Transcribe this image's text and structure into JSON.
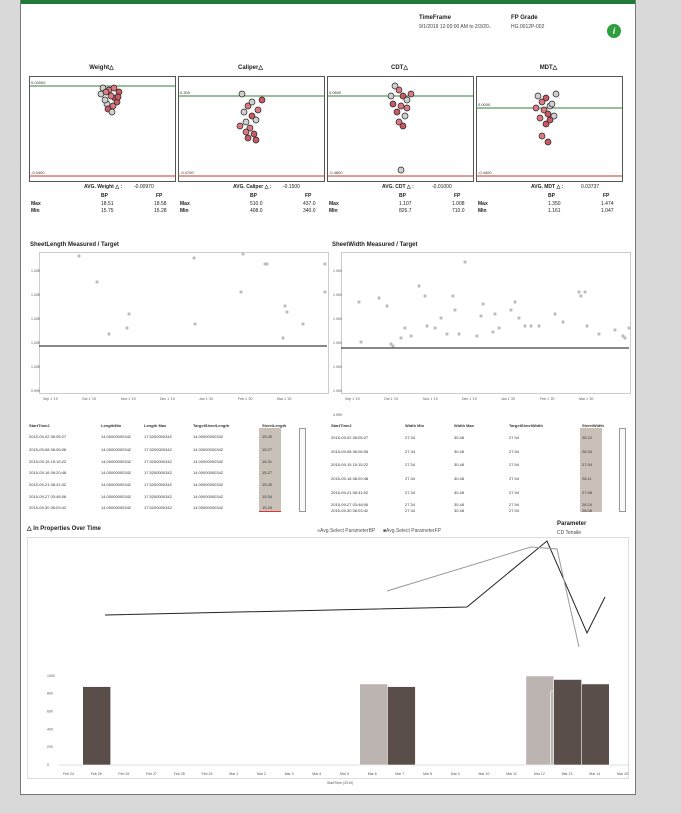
{
  "header": {
    "timeframe_label": "TimeFrame",
    "timeframe_value": "9/1/2019 12:00:00 AM to 2/3/20..",
    "grade_label": "FP Grade",
    "grade_value": "HG.0012P-002",
    "info_icon": "info-icon"
  },
  "panels": [
    {
      "title": "Weight△",
      "top_label": "0.03000",
      "bottom_label": "-0.0400",
      "avg_label": "AVG. Weight △ :",
      "avg_value": "-0.00970",
      "bp_max": "18.51",
      "fp_max": "18.58",
      "bp_min": "15.75",
      "fp_min": "15.28"
    },
    {
      "title": "Caliper△",
      "top_label": "0.300",
      "bottom_label": "-0.4700",
      "avg_label": "AVG. Caliper △ :",
      "avg_value": "-0.1500",
      "bp_max": "510.0",
      "fp_max": "437.0",
      "bp_min": "408.0",
      "fp_min": "340.0"
    },
    {
      "title": "CDT△",
      "top_label": "0.0600",
      "bottom_label": "-0.4800",
      "avg_label": "AVG. CDT △ :",
      "avg_value": "-0.01000",
      "bp_max": "1.107",
      "fp_max": "1.008",
      "bp_min": "826.7",
      "fp_min": "710.0"
    },
    {
      "title": "MDT△",
      "top_label": "0.0000",
      "bottom_label": "-0.4400",
      "avg_label": "AVG. MDT △ :",
      "avg_value": "0.03737",
      "bp_max": "1.350",
      "fp_max": "1.474",
      "bp_min": "1.161",
      "fp_min": "1.047"
    }
  ],
  "stats_labels": {
    "bp": "BP",
    "fp": "FP",
    "max": "Max",
    "min": "Min"
  },
  "length_chart": {
    "title": "SheetLength Measured / Target",
    "yticks": [
      "1.00E",
      "1.00E",
      "1.00E",
      "1.00E",
      "1.00E",
      "0.999"
    ],
    "xticks": [
      "Sep 1 '19",
      "Oct 1 '19",
      "Nov 1 '19",
      "Dec 1 '19",
      "Jan 1 '20",
      "Feb 1 '20",
      "Mar 1 '20"
    ]
  },
  "width_chart": {
    "title": "SheetWidth Measured / Target",
    "yticks": [
      "1.000",
      "1.000",
      "1.000",
      "1.000",
      "1.000",
      "1.000",
      "0.999"
    ],
    "xticks": [
      "Sep 1 '19",
      "Oct 1 '19",
      "Nov 1 '19",
      "Dec 1 '19",
      "Jan 1 '20",
      "Feb 1 '20",
      "Mar 1 '20"
    ]
  },
  "length_table": {
    "headers": [
      "StartTime2",
      "LengthMin",
      "Length Max",
      "TargetSheetLength",
      "SheetLength"
    ],
    "rows": [
      [
        "2015-09-02 06:05:27",
        "14.00000000342",
        "17.5200000342",
        "14.00000000342",
        "15.30"
      ],
      [
        "2015-09-08 06:06:06",
        "14.00000000342",
        "17.5200000342",
        "14.00000000342",
        "15.27"
      ],
      [
        "2015-09-15 15:15:22",
        "14.00000000342",
        "17.5200000342",
        "14.00000000342",
        "15.31"
      ],
      [
        "2015-09-16 06:20:48",
        "14.00000000342",
        "17.5200000342",
        "14.00000000342",
        "15.27"
      ],
      [
        "2015-09-21 06:41:02",
        "14.00000000342",
        "17.5200000342",
        "14.00000000342",
        "15.30"
      ],
      [
        "2015-09-27 03:48:06",
        "14.00000000342",
        "17.5200000342",
        "14.00000000342",
        "15.34"
      ],
      [
        "2015-09-30 06:03:42",
        "14.00000000342",
        "17.5200000342",
        "14.00000000342",
        "15.28"
      ]
    ]
  },
  "width_table": {
    "headers": [
      "StartTime2",
      "Width Min",
      "Width Max",
      "TargetSheetWidth",
      "SheetWidth"
    ],
    "rows": [
      [
        "2015-09-02 06:05:27",
        "27.34",
        "30.48",
        "27.94",
        "28.22"
      ],
      [
        "2015-09-08 06:06:06",
        "27.34",
        "30.48",
        "27.94",
        "28.34"
      ],
      [
        "2015-09-15 15:15:22",
        "27.34",
        "30.48",
        "27.94",
        "27.94"
      ],
      [
        "2015-09-16 06:20:48",
        "27.34",
        "30.48",
        "27.94",
        "28.11"
      ],
      [
        "2015-09-21 06:41:02",
        "27.34",
        "30.48",
        "27.94",
        "27.98"
      ],
      [
        "2015-09-27 03:48:06",
        "27.34",
        "30.48",
        "27.94",
        "28.24"
      ],
      [
        "2015-09-30 06:03:42",
        "27.34",
        "30.48",
        "27.94",
        "28.06"
      ]
    ]
  },
  "bottom_chart": {
    "title": "△ In Properties Over Time",
    "legend_bp": "Avg.Select ParameterBP",
    "legend_fp": "Avg.Select ParameterFP",
    "param_label": "Parameter",
    "param_value": "CD Tensile",
    "xlabel": "StartTime (2019)",
    "yticks": [
      "1000",
      "800",
      "600",
      "400",
      "200",
      "0"
    ],
    "xticks": [
      "Feb 24",
      "Feb 25",
      "Feb 26",
      "Feb 27",
      "Feb 28",
      "Feb 29",
      "Mar 1",
      "Mar 2",
      "Mar 3",
      "Mar 4",
      "Mar 5",
      "Mar 6",
      "Mar 7",
      "Mar 8",
      "Mar 9",
      "Mar 10",
      "Mar 11",
      "Mar 12",
      "Mar 13",
      "Mar 14",
      "Mar 15"
    ]
  },
  "colors": {
    "accent": "#1f7a3a",
    "bp_bar": "#bbb4b1",
    "fp_bar": "#5a4e4a",
    "line_dark": "#222222",
    "line_light": "#999999"
  },
  "chart_data": [
    {
      "type": "bar",
      "title": "△ In Properties Over Time",
      "categories": [
        "Feb 25",
        "Mar 6",
        "Mar 7",
        "Mar 12",
        "Mar 13",
        "Mar 14"
      ],
      "series": [
        {
          "name": "Avg.Select ParameterBP",
          "values": [
            null,
            910,
            null,
            1000,
            830,
            null
          ]
        },
        {
          "name": "Avg.Select ParameterFP",
          "values": [
            880,
            null,
            880,
            null,
            960,
            910
          ]
        }
      ],
      "ylim": [
        0,
        1100
      ]
    }
  ]
}
